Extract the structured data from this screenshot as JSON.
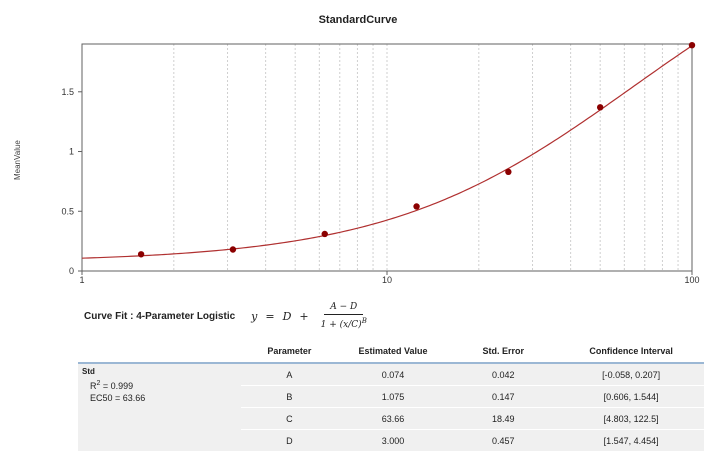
{
  "chart_data": {
    "type": "scatter",
    "title": "StandardCurve",
    "ylabel": "MeanValue",
    "xlabel": "",
    "x_scale": "log",
    "xlim": [
      1,
      100
    ],
    "ylim": [
      0,
      1.9
    ],
    "x_ticks": [
      1,
      10,
      100
    ],
    "x_tick_labels": [
      "1",
      "10",
      "100"
    ],
    "y_ticks": [
      0,
      0.5,
      1,
      1.5
    ],
    "y_tick_labels": [
      "0",
      "0.5",
      "1",
      "1.5"
    ],
    "grid": "vertical minor gridlines",
    "points": {
      "x": [
        1.5625,
        3.125,
        6.25,
        12.5,
        25,
        50,
        100
      ],
      "y": [
        0.14,
        0.18,
        0.31,
        0.54,
        0.83,
        1.37,
        1.89
      ]
    },
    "fit": {
      "model": "4-Parameter Logistic",
      "A": 0.074,
      "B": 1.075,
      "C": 63.66,
      "D": 3.0
    },
    "colors": {
      "points": "#8b0000",
      "curve": "#b03030",
      "frame": "#606060",
      "grid": "#cfcfcf"
    }
  },
  "curve_fit": {
    "label": "Curve Fit : 4-Parameter Logistic",
    "eq_y": "y",
    "eq_equals": "=",
    "eq_D": "D",
    "eq_plus": "+",
    "eq_numerator": "A − D",
    "eq_den_prefix": "1 + ",
    "eq_den_x": "x",
    "eq_den_c": "C",
    "eq_den_exp": "B"
  },
  "table": {
    "headers": [
      "Parameter",
      "Estimated Value",
      "Std. Error",
      "Confidence Interval"
    ],
    "std_name": "Std",
    "r2_label": "R",
    "r2_sup": "2",
    "r2_value": " = 0.999",
    "ec50": "EC50 = 63.66",
    "rows": [
      {
        "param": "A",
        "value": "0.074",
        "error": "0.042",
        "ci": "[-0.058, 0.207]"
      },
      {
        "param": "B",
        "value": "1.075",
        "error": "0.147",
        "ci": "[0.606, 1.544]"
      },
      {
        "param": "C",
        "value": "63.66",
        "error": "18.49",
        "ci": "[4.803, 122.5]"
      },
      {
        "param": "D",
        "value": "3.000",
        "error": "0.457",
        "ci": "[1.547, 4.454]"
      }
    ]
  }
}
